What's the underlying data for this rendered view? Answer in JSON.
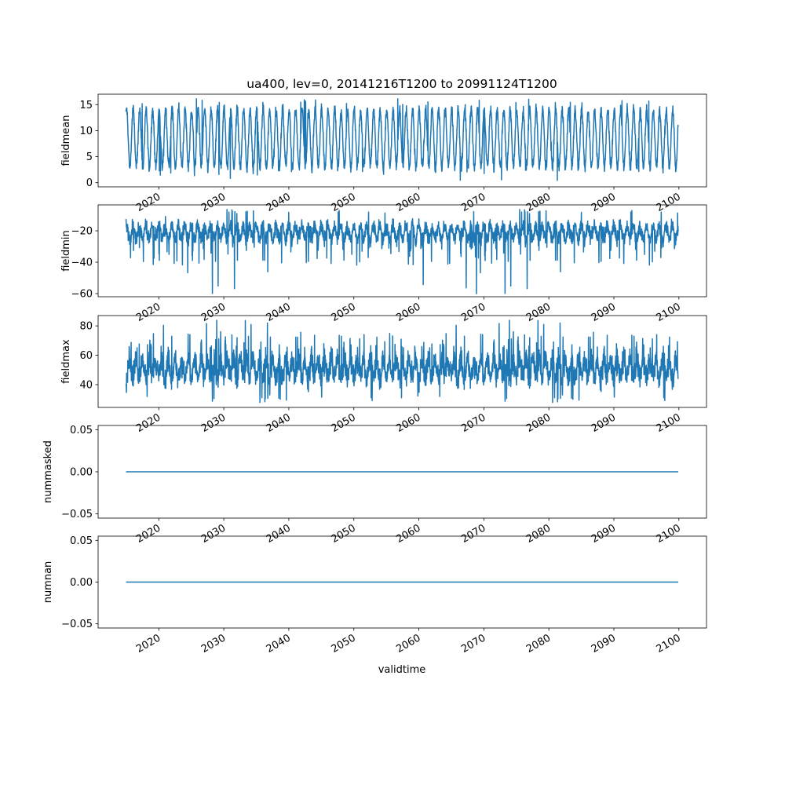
{
  "chart_data": {
    "type": "line",
    "title": "ua400, lev=0, 20141216T1200 to 20991124T1200",
    "xlabel": "validtime",
    "x_start": "2014-12-16",
    "x_end": "2099-11-24",
    "x_ticks": [
      "2020",
      "2030",
      "2040",
      "2050",
      "2060",
      "2070",
      "2080",
      "2090",
      "2100"
    ],
    "xlim": [
      "2010-09-01",
      "2104-04-01"
    ],
    "color": "#1f77b4",
    "grid": false,
    "subplots": [
      {
        "ylabel": "fieldmean",
        "ylim": [
          -0.8,
          17.0
        ],
        "yticks": [
          "0",
          "5",
          "10",
          "15"
        ],
        "ytick_values": [
          0,
          5,
          10,
          15
        ],
        "pattern": "seasonal oscillation",
        "typical_range": [
          3,
          14
        ],
        "max": 16.2,
        "min": 0.4
      },
      {
        "ylabel": "fieldmin",
        "ylim": [
          -62.0,
          -3.5
        ],
        "yticks": [
          "−20",
          "−40",
          "−60"
        ],
        "ytick_values": [
          -20,
          -40,
          -60
        ],
        "pattern": "noisy with downward spikes",
        "typical_range": [
          -32,
          -12
        ],
        "max": -6,
        "min": -60.5
      },
      {
        "ylabel": "fieldmax",
        "ylim": [
          24.5,
          87.0
        ],
        "yticks": [
          "40",
          "60",
          "80"
        ],
        "ytick_values": [
          40,
          60,
          80
        ],
        "pattern": "noisy with upward spikes",
        "typical_range": [
          38,
          68
        ],
        "max": 84,
        "min": 27
      },
      {
        "ylabel": "nummasked",
        "ylim": [
          -0.055,
          0.055
        ],
        "yticks": [
          "−0.05",
          "0.00",
          "0.05"
        ],
        "ytick_values": [
          -0.05,
          0.0,
          0.05
        ],
        "pattern": "constant",
        "value": 0.0
      },
      {
        "ylabel": "numnan",
        "ylim": [
          -0.055,
          0.055
        ],
        "yticks": [
          "−0.05",
          "0.00",
          "0.05"
        ],
        "ytick_values": [
          -0.05,
          0.0,
          0.05
        ],
        "pattern": "constant",
        "value": 0.0
      }
    ]
  }
}
